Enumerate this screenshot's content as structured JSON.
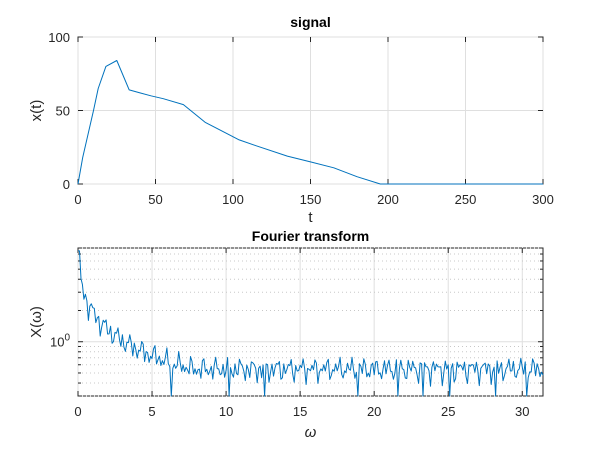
{
  "colors": {
    "series": "#0072bd",
    "axes": "#262626",
    "grid": "#dfdfdf"
  },
  "chart_data": [
    {
      "type": "line",
      "title": "signal",
      "xlabel": "t",
      "ylabel": "x(t)",
      "xlim": [
        0,
        300
      ],
      "ylim": [
        0,
        100
      ],
      "xticks": [
        0,
        50,
        100,
        150,
        200,
        250,
        300
      ],
      "yticks": [
        0,
        50,
        100
      ],
      "xtick_labels": [
        "0",
        "50",
        "100",
        "150",
        "200",
        "250",
        "300"
      ],
      "ytick_labels": [
        "0",
        "50",
        "100"
      ],
      "grid": true,
      "series": [
        {
          "x": [
            0,
            3,
            10,
            13,
            18,
            25,
            33,
            40,
            47,
            55,
            68,
            82,
            104,
            115,
            135,
            150,
            165,
            180,
            195,
            200,
            250,
            300
          ],
          "y": [
            0,
            18,
            50,
            65,
            80,
            84,
            64,
            62,
            60,
            58,
            54,
            42,
            30,
            26,
            19,
            15,
            11,
            5,
            0,
            0,
            0,
            0
          ]
        }
      ]
    },
    {
      "type": "line",
      "title": "Fourier transform",
      "xlabel": "ω",
      "ylabel": "X(ω)",
      "xlim": [
        0,
        31.4
      ],
      "ylim": [
        0.3,
        8
      ],
      "yscale": "log",
      "xticks": [
        0,
        5,
        10,
        15,
        20,
        25,
        30
      ],
      "xtick_labels": [
        "0",
        "5",
        "10",
        "15",
        "20",
        "25",
        "30"
      ],
      "yticks": [
        1
      ],
      "ytick_labels": [
        "10<sup>0</sup>"
      ],
      "ytick_label_base": "10",
      "ytick_label_exp": "0",
      "grid": true,
      "series": [
        {
          "x_start": 0,
          "x_end": 31.4,
          "dx": 0.1
        }
      ]
    }
  ]
}
